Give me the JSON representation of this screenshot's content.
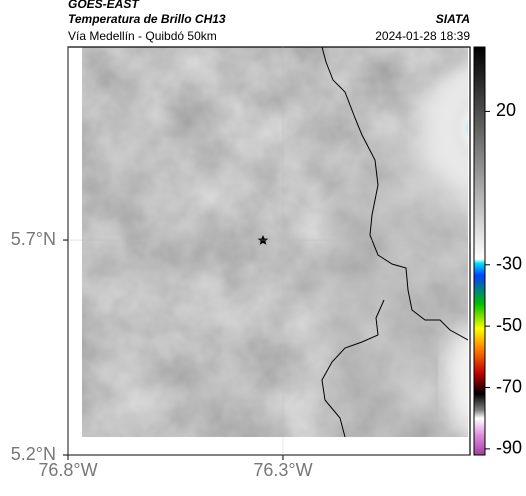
{
  "header": {
    "source": "GOES-EAST",
    "title": "Temperatura de Brillo CH13",
    "org": "SIATA",
    "subtitle": "Vía Medellín - Quibdó 50km",
    "date": "2024-01-28 18:39"
  },
  "map": {
    "xlim": [
      -76.8,
      -75.865
    ],
    "ylim": [
      5.2,
      6.149
    ],
    "xticks": [
      {
        "value": -76.8,
        "label": "76.8°W"
      },
      {
        "value": -76.3,
        "label": "76.3°W"
      }
    ],
    "yticks": [
      {
        "value": 5.7,
        "label": "5.7°N"
      },
      {
        "value": 5.2,
        "label": "5.2°N"
      }
    ]
  },
  "colorbar": {
    "clim": [
      -92,
      41
    ],
    "ticks": [
      20,
      -30,
      -50,
      -70,
      -90
    ]
  }
}
